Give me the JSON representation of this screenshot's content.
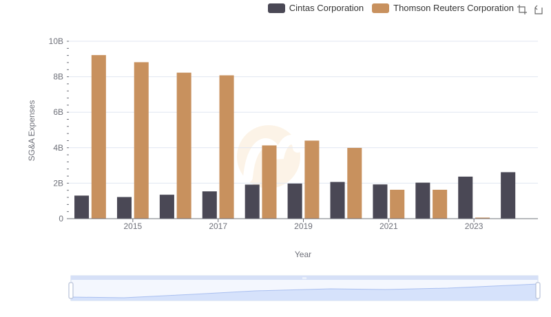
{
  "legend": {
    "series_a": "Cintas Corporation",
    "series_b": "Thomson Reuters Corporation"
  },
  "toolbar": {
    "zoom_icon": "zoom-icon",
    "restore_icon": "restore-icon"
  },
  "chart_data": {
    "type": "bar",
    "xlabel": "Year",
    "ylabel": "SG&A Expenses",
    "x_ticks": [
      "2015",
      "2017",
      "2019",
      "2021",
      "2023"
    ],
    "y_ticks": [
      "0",
      "2B",
      "4B",
      "6B",
      "8B",
      "10B"
    ],
    "ylim": [
      0,
      10000000000
    ],
    "categories": [
      "2014",
      "2015",
      "2016",
      "2017",
      "2018",
      "2019",
      "2020",
      "2021",
      "2022",
      "2023",
      "2024"
    ],
    "series": [
      {
        "name": "Cintas Corporation",
        "color": "#4a4855",
        "values": [
          1300000000,
          1220000000,
          1350000000,
          1540000000,
          1920000000,
          1980000000,
          2070000000,
          1930000000,
          2030000000,
          2370000000,
          2620000000
        ]
      },
      {
        "name": "Thomson Reuters Corporation",
        "color": "#c8915e",
        "values": [
          9220000000,
          8820000000,
          8230000000,
          8080000000,
          4130000000,
          4400000000,
          3990000000,
          1630000000,
          1630000000,
          60000000,
          null
        ]
      }
    ],
    "grid": true,
    "legend_position": "top-right",
    "datazoom_slider": true
  }
}
